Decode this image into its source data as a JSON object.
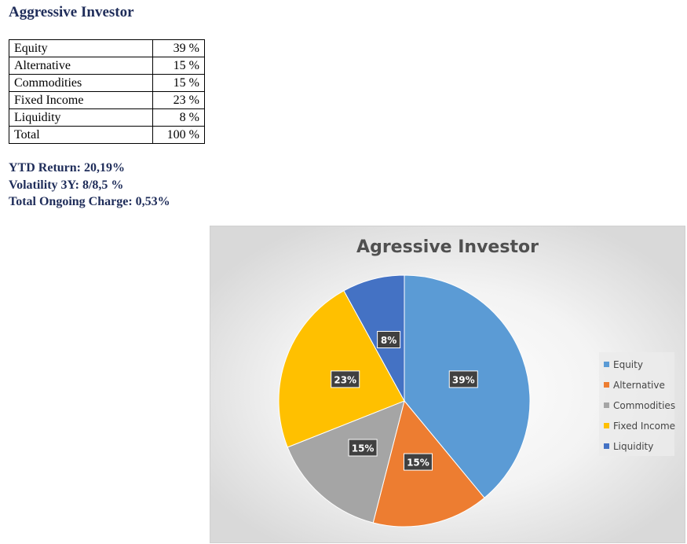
{
  "title": "Aggressive Investor",
  "allocation": [
    {
      "label": "Equity",
      "value": "39 %"
    },
    {
      "label": "Alternative",
      "value": "15 %"
    },
    {
      "label": "Commodities",
      "value": "15 %"
    },
    {
      "label": "Fixed Income",
      "value": "23 %"
    },
    {
      "label": "Liquidity",
      "value": "8 %"
    },
    {
      "label": "Total",
      "value": "100 %"
    }
  ],
  "stats": {
    "ytd": "YTD Return: 20,19%",
    "volatility": "Volatility 3Y: 8/8,5 %",
    "charge": "Total Ongoing Charge: 0,53%"
  },
  "chart_data": {
    "type": "pie",
    "title": "Agressive Investor",
    "categories": [
      "Equity",
      "Alternative",
      "Commodities",
      "Fixed Income",
      "Liquidity"
    ],
    "values": [
      39,
      15,
      15,
      23,
      8
    ],
    "labels": [
      "39%",
      "15%",
      "15%",
      "23%",
      "8%"
    ],
    "colors": [
      "#5b9bd5",
      "#ed7d31",
      "#a5a5a5",
      "#ffc000",
      "#4472c4"
    ],
    "legend": "right"
  }
}
